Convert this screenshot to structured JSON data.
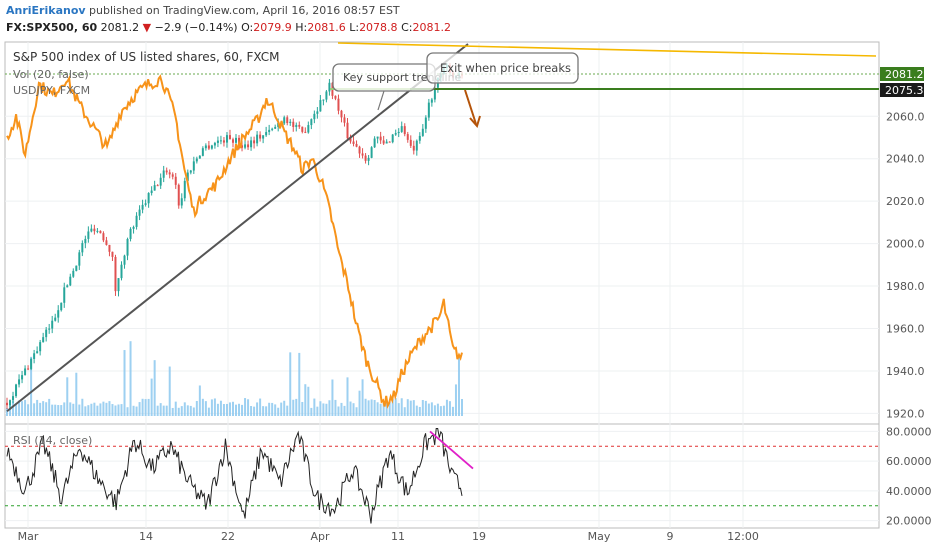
{
  "header": {
    "author": "AnriErikanov",
    "published": "published on TradingView.com, April 16, 2016 08:57 EST",
    "symbol": "FX:SPX500, 60",
    "last": "2081.2",
    "change": "−2.9 (−0.14%)",
    "o_label": "O:",
    "o_value": "2079.9",
    "h_label": "H:",
    "h_value": "2081.6",
    "l_label": "L:",
    "l_value": "2078.8",
    "c_label": "C:",
    "c_value": "2081.2"
  },
  "legend": {
    "main": "S&P 500 index of US listed shares, 60, FXCM",
    "vol": "Vol (20, false)",
    "overlay": "USDJPY, FXCM",
    "rsi": "RSI (14, close)"
  },
  "annotations": {
    "trendline_callout": "Key support trendline",
    "exit_callout": "Exit when price breaks"
  },
  "price_badges": [
    "2081.2",
    "2075.3"
  ],
  "colors": {
    "bull": "#26a69a",
    "bear": "#e05050",
    "usdjpy": "#f7931a",
    "resistance": "#f5b800",
    "support": "#3a7d1e",
    "rsi_line": "#222222",
    "rsi_upper": "#e03030",
    "rsi_lower": "#2ca02c",
    "rsi_trend": "#e020c8",
    "arrow": "#b45309",
    "volume": "#8cc8ee"
  },
  "chart_data": [
    {
      "type": "candlestick",
      "title": "S&P 500 index of US listed shares, 60, FXCM",
      "x_ticks": [
        "Mar",
        "14",
        "22",
        "Apr",
        "11",
        "19",
        "May",
        "9",
        "12:00"
      ],
      "y_ticks": [
        "2060.0",
        "2040.0",
        "2020.0",
        "2000.0",
        "1980.0",
        "1960.0",
        "1940.0",
        "1920.0"
      ],
      "ylim": [
        1915,
        2095
      ],
      "price_path": [
        {
          "t": 0,
          "v": 1925
        },
        {
          "t": 6,
          "v": 1948
        },
        {
          "t": 10,
          "v": 1963
        },
        {
          "t": 13,
          "v": 1980
        },
        {
          "t": 15,
          "v": 1990
        },
        {
          "t": 17,
          "v": 2002
        },
        {
          "t": 19,
          "v": 2008
        },
        {
          "t": 21,
          "v": 2004
        },
        {
          "t": 23,
          "v": 1996
        },
        {
          "t": 24,
          "v": 1975
        },
        {
          "t": 25,
          "v": 1990
        },
        {
          "t": 27,
          "v": 2005
        },
        {
          "t": 29,
          "v": 2014
        },
        {
          "t": 31,
          "v": 2022
        },
        {
          "t": 33,
          "v": 2028
        },
        {
          "t": 35,
          "v": 2035
        },
        {
          "t": 37,
          "v": 2030
        },
        {
          "t": 38,
          "v": 2015
        },
        {
          "t": 39,
          "v": 2030
        },
        {
          "t": 41,
          "v": 2038
        },
        {
          "t": 43,
          "v": 2045
        },
        {
          "t": 46,
          "v": 2048
        },
        {
          "t": 49,
          "v": 2050
        },
        {
          "t": 52,
          "v": 2046
        },
        {
          "t": 55,
          "v": 2050
        },
        {
          "t": 58,
          "v": 2053
        },
        {
          "t": 61,
          "v": 2060
        },
        {
          "t": 63,
          "v": 2055
        },
        {
          "t": 65,
          "v": 2052
        },
        {
          "t": 67,
          "v": 2060
        },
        {
          "t": 69,
          "v": 2067
        },
        {
          "t": 71,
          "v": 2075
        },
        {
          "t": 73,
          "v": 2062
        },
        {
          "t": 75,
          "v": 2050
        },
        {
          "t": 77,
          "v": 2045
        },
        {
          "t": 79,
          "v": 2040
        },
        {
          "t": 81,
          "v": 2050
        },
        {
          "t": 83,
          "v": 2046
        },
        {
          "t": 85,
          "v": 2052
        },
        {
          "t": 87,
          "v": 2055
        },
        {
          "t": 89,
          "v": 2043
        },
        {
          "t": 91,
          "v": 2050
        },
        {
          "t": 93,
          "v": 2068
        },
        {
          "t": 95,
          "v": 2078
        },
        {
          "t": 97,
          "v": 2084
        },
        {
          "t": 98,
          "v": 2079
        },
        {
          "t": 100,
          "v": 2081
        }
      ],
      "trendline": [
        {
          "t": 0,
          "v": 1921
        },
        {
          "t": 100,
          "v": 2089
        }
      ],
      "usdjpy_path": [
        {
          "t": 0,
          "v": 2050
        },
        {
          "t": 2,
          "v": 2060
        },
        {
          "t": 4,
          "v": 2042
        },
        {
          "t": 7,
          "v": 2075
        },
        {
          "t": 10,
          "v": 2070
        },
        {
          "t": 13,
          "v": 2078
        },
        {
          "t": 16,
          "v": 2065
        },
        {
          "t": 19,
          "v": 2055
        },
        {
          "t": 22,
          "v": 2045
        },
        {
          "t": 25,
          "v": 2062
        },
        {
          "t": 28,
          "v": 2070
        },
        {
          "t": 31,
          "v": 2075
        },
        {
          "t": 34,
          "v": 2078
        },
        {
          "t": 37,
          "v": 2060
        },
        {
          "t": 39,
          "v": 2035
        },
        {
          "t": 41,
          "v": 2015
        },
        {
          "t": 43,
          "v": 2022
        },
        {
          "t": 46,
          "v": 2028
        },
        {
          "t": 49,
          "v": 2040
        },
        {
          "t": 52,
          "v": 2050
        },
        {
          "t": 55,
          "v": 2058
        },
        {
          "t": 57,
          "v": 2068
        },
        {
          "t": 59,
          "v": 2062
        },
        {
          "t": 61,
          "v": 2052
        },
        {
          "t": 63,
          "v": 2045
        },
        {
          "t": 65,
          "v": 2035
        },
        {
          "t": 67,
          "v": 2040
        },
        {
          "t": 69,
          "v": 2030
        },
        {
          "t": 71,
          "v": 2015
        },
        {
          "t": 73,
          "v": 1995
        },
        {
          "t": 75,
          "v": 1980
        },
        {
          "t": 77,
          "v": 1960
        },
        {
          "t": 79,
          "v": 1945
        },
        {
          "t": 81,
          "v": 1935
        },
        {
          "t": 83,
          "v": 1925
        },
        {
          "t": 85,
          "v": 1928
        },
        {
          "t": 87,
          "v": 1940
        },
        {
          "t": 89,
          "v": 1948
        },
        {
          "t": 91,
          "v": 1955
        },
        {
          "t": 93,
          "v": 1960
        },
        {
          "t": 95,
          "v": 1965
        },
        {
          "t": 96,
          "v": 1972
        },
        {
          "t": 98,
          "v": 1950
        },
        {
          "t": 100,
          "v": 1946
        }
      ],
      "resistance_line": [
        {
          "x": "Apr",
          "v": 2095
        },
        {
          "x": "19",
          "v": 2093
        }
      ],
      "horizontal_levels": [
        2081.2,
        2075.3
      ]
    },
    {
      "type": "line",
      "title": "RSI (14, close)",
      "y_ticks": [
        "80.0000",
        "60.0000",
        "40.0000",
        "20.0000"
      ],
      "ylim": [
        15,
        85
      ],
      "levels": [
        70,
        30
      ],
      "path": [
        {
          "t": 0,
          "v": 68
        },
        {
          "t": 4,
          "v": 40
        },
        {
          "t": 8,
          "v": 72
        },
        {
          "t": 12,
          "v": 35
        },
        {
          "t": 16,
          "v": 70
        },
        {
          "t": 20,
          "v": 48
        },
        {
          "t": 24,
          "v": 32
        },
        {
          "t": 28,
          "v": 74
        },
        {
          "t": 32,
          "v": 55
        },
        {
          "t": 36,
          "v": 70
        },
        {
          "t": 40,
          "v": 45
        },
        {
          "t": 44,
          "v": 30
        },
        {
          "t": 48,
          "v": 70
        },
        {
          "t": 52,
          "v": 22
        },
        {
          "t": 56,
          "v": 68
        },
        {
          "t": 60,
          "v": 45
        },
        {
          "t": 64,
          "v": 78
        },
        {
          "t": 68,
          "v": 35
        },
        {
          "t": 72,
          "v": 28
        },
        {
          "t": 76,
          "v": 55
        },
        {
          "t": 80,
          "v": 24
        },
        {
          "t": 84,
          "v": 66
        },
        {
          "t": 88,
          "v": 38
        },
        {
          "t": 92,
          "v": 72
        },
        {
          "t": 95,
          "v": 79
        },
        {
          "t": 98,
          "v": 48
        },
        {
          "t": 100,
          "v": 42
        }
      ],
      "trend": [
        {
          "t": 92,
          "v": 80
        },
        {
          "t": 100,
          "v": 55
        }
      ]
    }
  ]
}
